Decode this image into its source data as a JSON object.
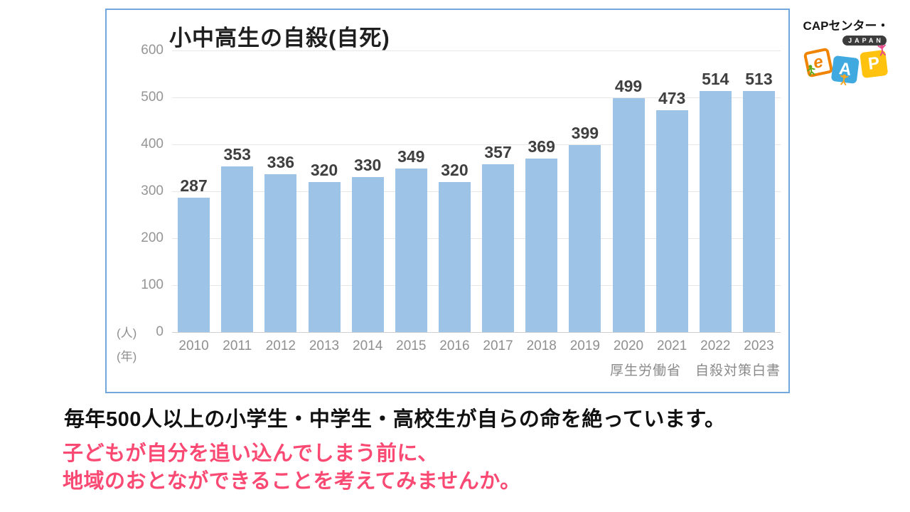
{
  "chart_data": {
    "type": "bar",
    "title": "小中高生の自殺(自死)",
    "categories": [
      "2010",
      "2011",
      "2012",
      "2013",
      "2014",
      "2015",
      "2016",
      "2017",
      "2018",
      "2019",
      "2020",
      "2021",
      "2022",
      "2023"
    ],
    "values": [
      287,
      353,
      336,
      320,
      330,
      349,
      320,
      357,
      369,
      399,
      499,
      473,
      514,
      513
    ],
    "ylabel": "(人)",
    "xlabel": "(年)",
    "ylim": [
      0,
      600
    ],
    "yticks": [
      0,
      100,
      200,
      300,
      400,
      500,
      600
    ],
    "grid": true,
    "legend": false,
    "source": "厚生労働省　自殺対策白書",
    "bar_color": "#9dc3e6",
    "panel_border_color": "#71a7dc"
  },
  "caption": {
    "line1": "毎年500人以上の小学生・中学生・高校生が自らの命を絶っています。",
    "line2": "子どもが自分を追い込んでしまう前に、",
    "line3": "地域のおとなができることを考えてみませんか。",
    "accent_color": "#fa4a73"
  },
  "logo": {
    "name": "CAPセンター・",
    "sub": "JAPAN",
    "tiles": [
      {
        "letter": "e",
        "color": "#f08300"
      },
      {
        "letter": "A",
        "color": "#3fa9e0"
      },
      {
        "letter": "P",
        "color": "#ffc20e"
      }
    ]
  }
}
